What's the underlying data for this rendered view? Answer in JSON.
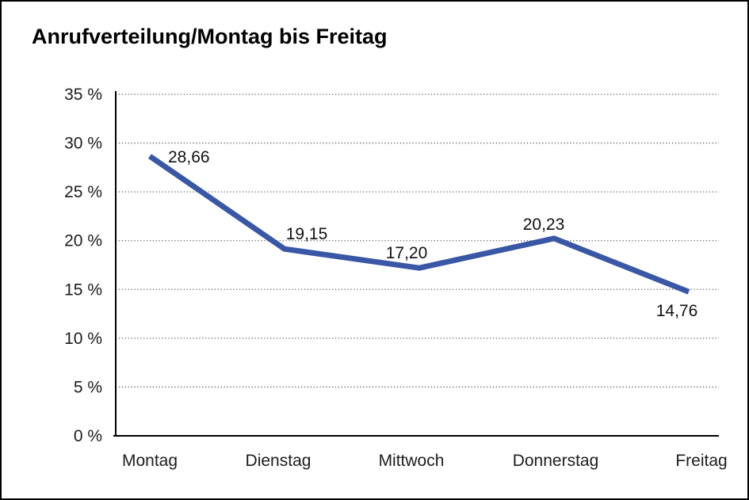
{
  "chart_data": {
    "type": "line",
    "title": "Anrufverteilung/Montag bis Freitag",
    "categories": [
      "Montag",
      "Dienstag",
      "Mittwoch",
      "Donnerstag",
      "Freitag"
    ],
    "series": [
      {
        "name": "Anrufverteilung",
        "values": [
          28.66,
          19.15,
          17.2,
          20.23,
          14.76
        ]
      }
    ],
    "point_labels": [
      "28,66",
      "19,15",
      "17,20",
      "20,23",
      "14,76"
    ],
    "y_ticks": [
      {
        "value": 35,
        "label": "35 %"
      },
      {
        "value": 30,
        "label": "30 %"
      },
      {
        "value": 25,
        "label": "25 %"
      },
      {
        "value": 20,
        "label": "20 %"
      },
      {
        "value": 15,
        "label": "15 %"
      },
      {
        "value": 10,
        "label": "10 %"
      },
      {
        "value": 5,
        "label": "5 %"
      },
      {
        "value": 0,
        "label": "0 %"
      }
    ],
    "ylim": [
      0,
      35
    ],
    "xlabel": "",
    "ylabel": "",
    "legend": "none",
    "grid": "horizontal-dotted",
    "line_color": "#3A57A5",
    "axis_color": "#000000",
    "grid_color": "#666666",
    "label_positions": [
      "above-right",
      "above",
      "above-left",
      "above-left",
      "below-left"
    ]
  }
}
